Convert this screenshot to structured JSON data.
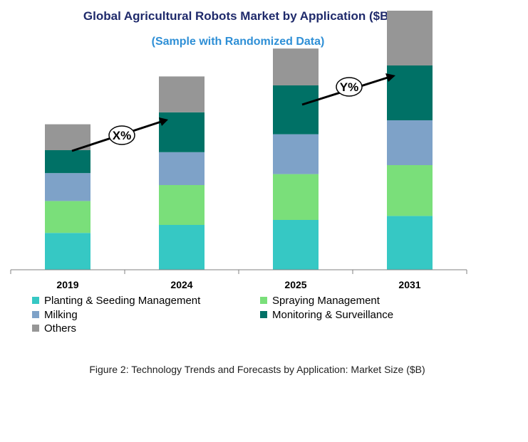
{
  "chart_data": {
    "type": "bar",
    "stacked": true,
    "title": "Global Agricultural Robots Market by Application ($B)",
    "subtitle": "(Sample with Randomized Data)",
    "categories": [
      "2019",
      "2024",
      "2025",
      "2031"
    ],
    "series": [
      {
        "name": "Planting & Seeding Management",
        "color": "#36c8c4",
        "values": [
          37,
          45,
          50,
          54
        ]
      },
      {
        "name": "Spraying Management",
        "color": "#7adf7a",
        "values": [
          32,
          40,
          46,
          51
        ]
      },
      {
        "name": "Milking",
        "color": "#7ea2c8",
        "values": [
          28,
          33,
          40,
          45
        ]
      },
      {
        "name": "Monitoring & Surveillance",
        "color": "#007166",
        "values": [
          23,
          40,
          49,
          55
        ]
      },
      {
        "name": "Others",
        "color": "#969696",
        "values": [
          26,
          36,
          37,
          55
        ]
      }
    ],
    "annotations": [
      "X%",
      "Y%"
    ],
    "grid": false,
    "legend_position": "bottom"
  },
  "caption": "Figure 2: Technology  Trends  and Forecasts by Application: Market Size ($B)",
  "colors": {
    "title": "#1f2a6b",
    "subtitle": "#2e8fd6"
  }
}
